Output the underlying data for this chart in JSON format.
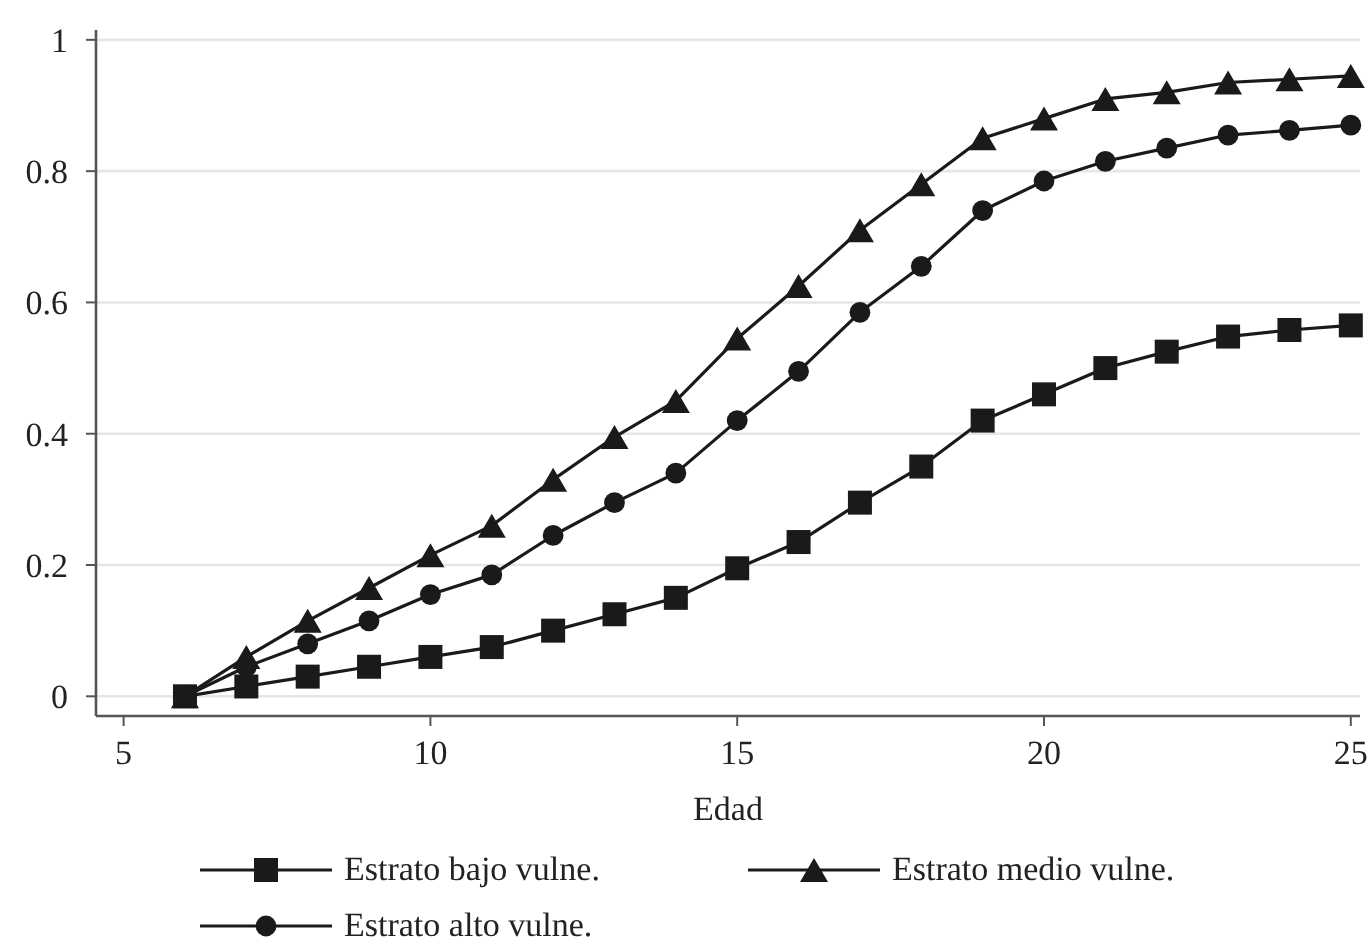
{
  "chart_data": {
    "type": "line",
    "xlabel": "Edad",
    "x": [
      6,
      7,
      8,
      9,
      10,
      11,
      12,
      13,
      14,
      15,
      16,
      17,
      18,
      19,
      20,
      21,
      22,
      23,
      24,
      25
    ],
    "series": [
      {
        "name": "Estrato bajo vulne.",
        "color": "#1a1a1a",
        "marker": "square",
        "values": [
          0,
          0.015,
          0.03,
          0.045,
          0.06,
          0.075,
          0.1,
          0.125,
          0.15,
          0.195,
          0.235,
          0.295,
          0.35,
          0.42,
          0.46,
          0.5,
          0.525,
          0.548,
          0.558,
          0.565
        ]
      },
      {
        "name": "Estrato medio vulne.",
        "color": "#1a1a1a",
        "marker": "triangle",
        "values": [
          0,
          0.06,
          0.115,
          0.165,
          0.215,
          0.26,
          0.33,
          0.395,
          0.45,
          0.545,
          0.625,
          0.71,
          0.78,
          0.85,
          0.88,
          0.91,
          0.92,
          0.935,
          0.94,
          0.945
        ]
      },
      {
        "name": "Estrato alto vulne.",
        "color": "#1a1a1a",
        "marker": "circle",
        "values": [
          0,
          0.045,
          0.08,
          0.115,
          0.155,
          0.185,
          0.245,
          0.295,
          0.34,
          0.42,
          0.495,
          0.585,
          0.655,
          0.74,
          0.785,
          0.815,
          0.835,
          0.855,
          0.862,
          0.87
        ]
      }
    ],
    "xlim": [
      4.55,
      25.15
    ],
    "xticks": [
      5,
      10,
      15,
      20,
      25
    ],
    "ylim": [
      -0.03,
      1.015
    ],
    "yticks": [
      0,
      0.2,
      0.4,
      0.6,
      0.8,
      1
    ],
    "grid": "y",
    "legend": "bottom",
    "line_style": "solid"
  }
}
